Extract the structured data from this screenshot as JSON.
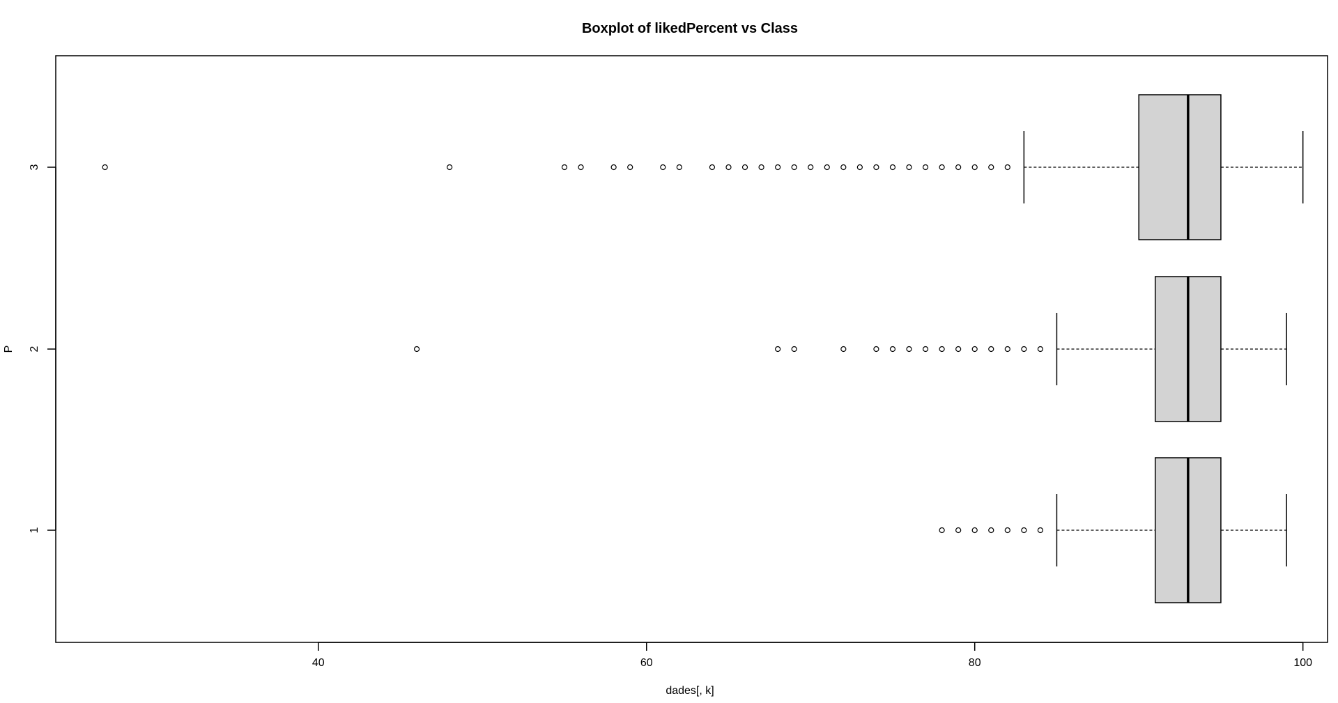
{
  "chart_data": {
    "type": "boxplot",
    "orientation": "horizontal",
    "title": "Boxplot of likedPercent vs Class",
    "xlabel": "dades[, k]",
    "ylabel": "P",
    "xlim": [
      24,
      101.5
    ],
    "x_ticks": [
      40,
      60,
      80,
      100
    ],
    "categories": [
      "1",
      "2",
      "3"
    ],
    "grid": false,
    "colors": {
      "box_fill": "#d3d3d3",
      "stroke": "#000000",
      "background": "#ffffff"
    },
    "boxes": [
      {
        "category": "1",
        "whisker_low": 85,
        "q1": 91,
        "median": 93,
        "q3": 95,
        "whisker_high": 99,
        "outliers": [
          78,
          79,
          80,
          81,
          82,
          83,
          84
        ]
      },
      {
        "category": "2",
        "whisker_low": 85,
        "q1": 91,
        "median": 93,
        "q3": 95,
        "whisker_high": 99,
        "outliers": [
          46,
          68,
          69,
          72,
          74,
          75,
          76,
          77,
          78,
          79,
          80,
          81,
          82,
          83,
          84
        ]
      },
      {
        "category": "3",
        "whisker_low": 83,
        "q1": 90,
        "median": 93,
        "q3": 95,
        "whisker_high": 100,
        "outliers": [
          27,
          48,
          55,
          56,
          58,
          59,
          61,
          62,
          64,
          65,
          66,
          67,
          68,
          69,
          70,
          71,
          72,
          73,
          74,
          75,
          76,
          77,
          78,
          79,
          80,
          81,
          82
        ]
      }
    ]
  }
}
